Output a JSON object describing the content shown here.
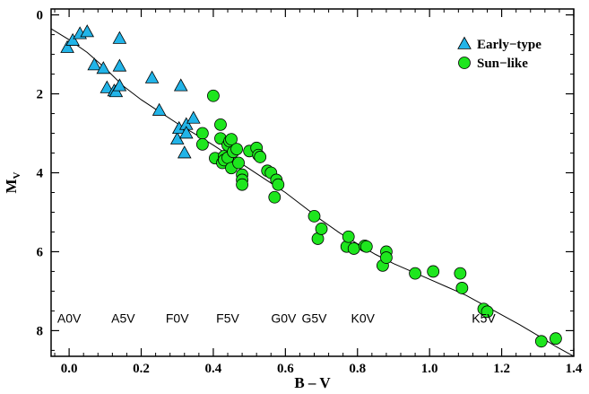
{
  "chart_data": {
    "type": "scatter",
    "xlabel": "B – V",
    "ylabel": "M",
    "ylabel_subscript": "V",
    "xlim": [
      -0.05,
      1.4
    ],
    "ylim": [
      8.65,
      -0.15
    ],
    "x_ticks": [
      0.0,
      0.2,
      0.4,
      0.6,
      0.8,
      1.0,
      1.2,
      1.4
    ],
    "x_tick_labels": [
      "0.0",
      "0.2",
      "0.4",
      "0.6",
      "0.8",
      "1.0",
      "1.2",
      "1.4"
    ],
    "y_ticks": [
      0,
      2,
      4,
      6,
      8
    ],
    "y_tick_labels": [
      "0",
      "2",
      "4",
      "6",
      "8"
    ],
    "legend_position": "top-right",
    "series": [
      {
        "name": "Early−type",
        "marker": "triangle",
        "color": "#22b4e8",
        "points": [
          [
            -0.005,
            0.83
          ],
          [
            0.01,
            0.65
          ],
          [
            0.03,
            0.48
          ],
          [
            0.05,
            0.43
          ],
          [
            0.07,
            1.27
          ],
          [
            0.095,
            1.36
          ],
          [
            0.105,
            1.85
          ],
          [
            0.125,
            1.93
          ],
          [
            0.13,
            1.95
          ],
          [
            0.14,
            1.8
          ],
          [
            0.14,
            1.3
          ],
          [
            0.14,
            0.6
          ],
          [
            0.23,
            1.6
          ],
          [
            0.25,
            2.42
          ],
          [
            0.3,
            3.15
          ],
          [
            0.305,
            2.88
          ],
          [
            0.31,
            1.8
          ],
          [
            0.32,
            3.5
          ],
          [
            0.325,
            2.78
          ],
          [
            0.325,
            3.0
          ],
          [
            0.345,
            2.62
          ]
        ]
      },
      {
        "name": "Sun−like",
        "marker": "circle",
        "color": "#1ee61e",
        "points": [
          [
            0.37,
            3.0
          ],
          [
            0.37,
            3.28
          ],
          [
            0.4,
            2.05
          ],
          [
            0.405,
            3.63
          ],
          [
            0.42,
            2.78
          ],
          [
            0.42,
            3.13
          ],
          [
            0.425,
            3.75
          ],
          [
            0.43,
            3.58
          ],
          [
            0.43,
            3.68
          ],
          [
            0.44,
            3.3
          ],
          [
            0.44,
            3.62
          ],
          [
            0.445,
            3.2
          ],
          [
            0.45,
            3.15
          ],
          [
            0.45,
            3.88
          ],
          [
            0.455,
            3.47
          ],
          [
            0.465,
            3.4
          ],
          [
            0.47,
            3.75
          ],
          [
            0.48,
            4.05
          ],
          [
            0.48,
            4.18
          ],
          [
            0.48,
            4.3
          ],
          [
            0.5,
            3.45
          ],
          [
            0.52,
            3.37
          ],
          [
            0.525,
            3.55
          ],
          [
            0.53,
            3.6
          ],
          [
            0.55,
            3.95
          ],
          [
            0.56,
            4.0
          ],
          [
            0.57,
            4.62
          ],
          [
            0.575,
            4.18
          ],
          [
            0.58,
            4.3
          ],
          [
            0.68,
            5.1
          ],
          [
            0.69,
            5.67
          ],
          [
            0.7,
            5.42
          ],
          [
            0.77,
            5.87
          ],
          [
            0.775,
            5.62
          ],
          [
            0.79,
            5.92
          ],
          [
            0.82,
            5.85
          ],
          [
            0.825,
            5.87
          ],
          [
            0.87,
            6.35
          ],
          [
            0.88,
            6.0
          ],
          [
            0.88,
            6.15
          ],
          [
            0.96,
            6.55
          ],
          [
            1.01,
            6.5
          ],
          [
            1.085,
            6.55
          ],
          [
            1.09,
            6.92
          ],
          [
            1.15,
            7.45
          ],
          [
            1.16,
            7.52
          ],
          [
            1.31,
            8.27
          ],
          [
            1.35,
            8.2
          ]
        ]
      }
    ],
    "fit_line": [
      [
        -0.05,
        0.35
      ],
      [
        0.0,
        0.63
      ],
      [
        0.05,
        0.95
      ],
      [
        0.1,
        1.35
      ],
      [
        0.15,
        1.8
      ],
      [
        0.2,
        2.15
      ],
      [
        0.25,
        2.45
      ],
      [
        0.3,
        2.75
      ],
      [
        0.35,
        3.02
      ],
      [
        0.4,
        3.3
      ],
      [
        0.45,
        3.6
      ],
      [
        0.5,
        3.9
      ],
      [
        0.55,
        4.2
      ],
      [
        0.6,
        4.5
      ],
      [
        0.65,
        4.85
      ],
      [
        0.7,
        5.2
      ],
      [
        0.75,
        5.52
      ],
      [
        0.8,
        5.8
      ],
      [
        0.85,
        6.07
      ],
      [
        0.9,
        6.3
      ],
      [
        0.95,
        6.5
      ],
      [
        1.0,
        6.7
      ],
      [
        1.05,
        6.9
      ],
      [
        1.1,
        7.1
      ],
      [
        1.15,
        7.35
      ],
      [
        1.2,
        7.6
      ],
      [
        1.25,
        7.85
      ],
      [
        1.3,
        8.12
      ],
      [
        1.35,
        8.4
      ],
      [
        1.4,
        8.65
      ]
    ],
    "annotations": [
      {
        "text": "A0V",
        "x": 0.0,
        "y": 7.68
      },
      {
        "text": "A5V",
        "x": 0.15,
        "y": 7.68
      },
      {
        "text": "F0V",
        "x": 0.3,
        "y": 7.68
      },
      {
        "text": "F5V",
        "x": 0.44,
        "y": 7.68
      },
      {
        "text": "G0V",
        "x": 0.595,
        "y": 7.68
      },
      {
        "text": "G5V",
        "x": 0.68,
        "y": 7.68
      },
      {
        "text": "K0V",
        "x": 0.815,
        "y": 7.68
      },
      {
        "text": "K5V",
        "x": 1.15,
        "y": 7.68
      }
    ]
  }
}
